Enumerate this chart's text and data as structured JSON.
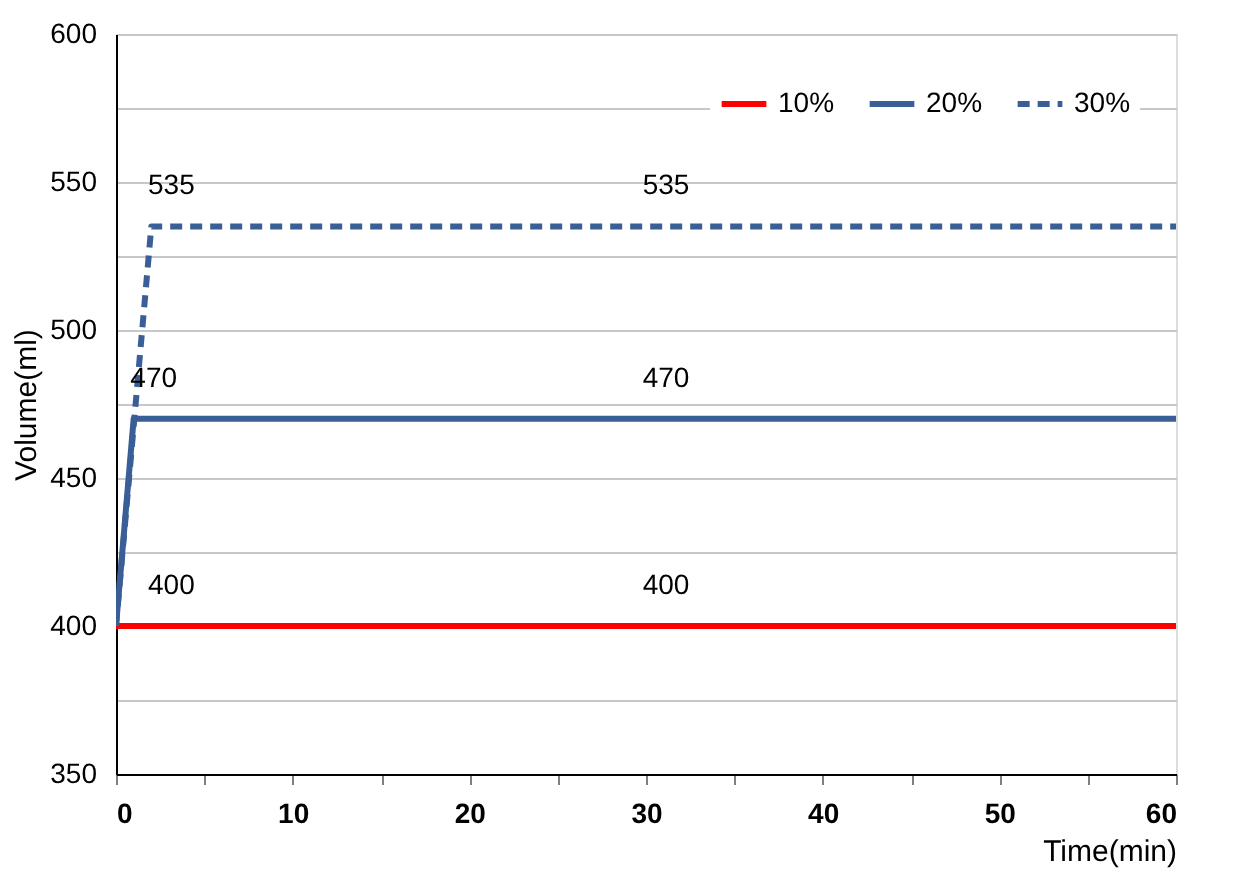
{
  "chart_data": {
    "type": "line",
    "xlabel": "Time(min)",
    "ylabel": "Volume(ml)",
    "series": [
      {
        "name": "10%",
        "color": "#ff0000",
        "line_style": "solid",
        "x": [
          0,
          2,
          30,
          60
        ],
        "values": [
          400,
          400,
          400,
          400
        ],
        "value_labels": [
          null,
          "400",
          "400",
          null
        ]
      },
      {
        "name": "20%",
        "color": "#3a5f96",
        "line_style": "solid",
        "x": [
          0,
          1,
          30,
          60
        ],
        "values": [
          400,
          470,
          470,
          470
        ],
        "value_labels": [
          null,
          "470",
          "470",
          null
        ]
      },
      {
        "name": "30%",
        "color": "#3a5f96",
        "line_style": "dashed",
        "x": [
          0,
          2,
          30,
          60
        ],
        "values": [
          400,
          535,
          535,
          535
        ],
        "value_labels": [
          null,
          "535",
          "535",
          null
        ]
      }
    ],
    "xlim": [
      0,
      60
    ],
    "xticks": [
      0,
      {
        "value": 5,
        "label": null
      },
      10,
      {
        "value": 15,
        "label": null
      },
      20,
      {
        "value": 25,
        "label": null
      },
      30,
      {
        "value": 35,
        "label": null
      },
      40,
      {
        "value": 45,
        "label": null
      },
      50,
      {
        "value": 55,
        "label": null
      },
      60
    ],
    "ylim": [
      350,
      600
    ],
    "yticks": [
      350,
      {
        "value": 375,
        "label": null
      },
      400,
      {
        "value": 425,
        "label": null
      },
      450,
      {
        "value": 475,
        "label": null
      },
      500,
      {
        "value": 525,
        "label": null
      },
      550,
      {
        "value": 575,
        "label": null
      },
      600
    ],
    "grid": "y",
    "legend": "top right",
    "marker": "none"
  }
}
